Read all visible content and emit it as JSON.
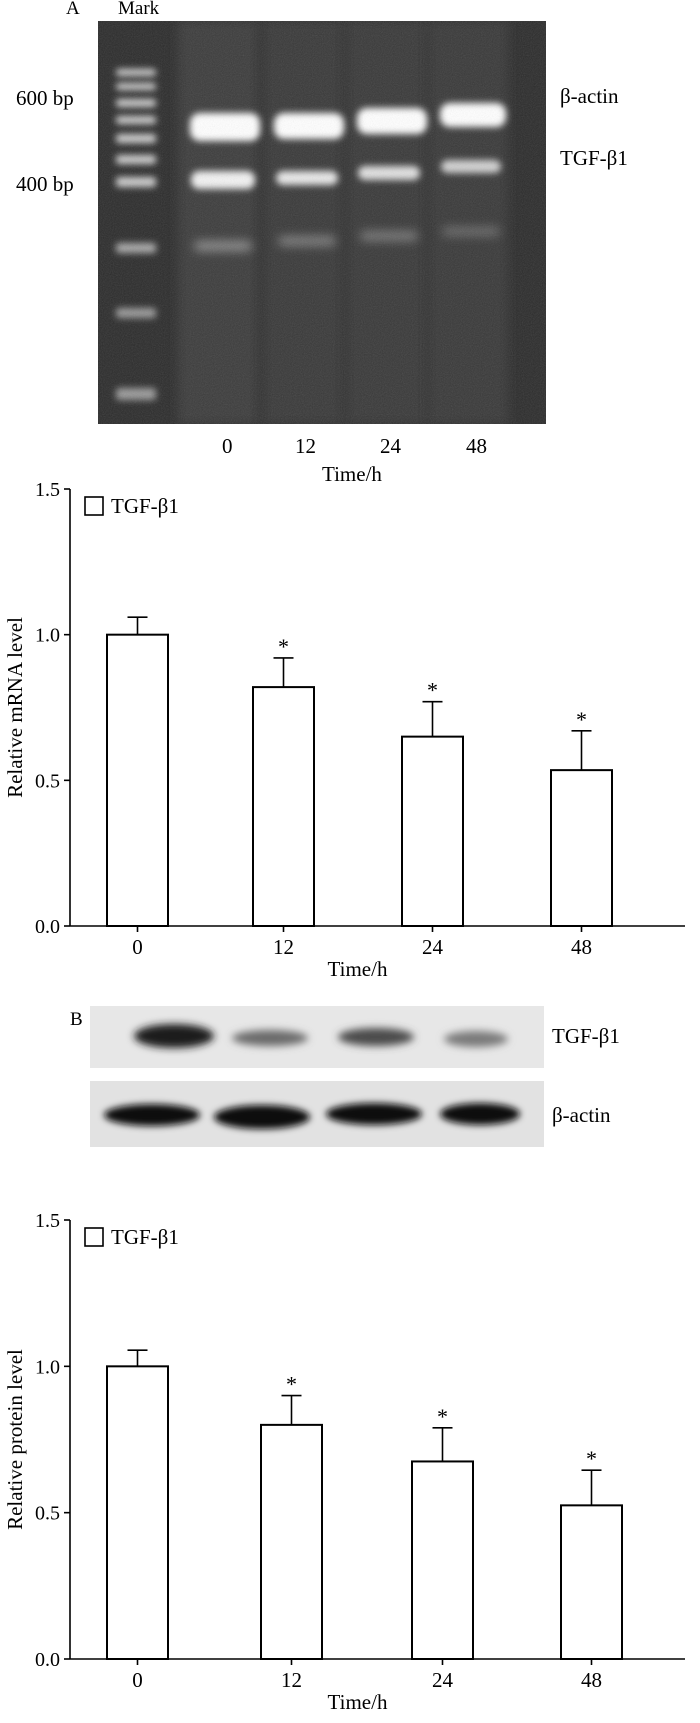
{
  "panel_a": {
    "label": "A",
    "gel": {
      "marker_label": "Mark",
      "size_labels": [
        "600 bp",
        "400 bp"
      ],
      "band_labels": [
        "β-actin",
        "TGF-β1"
      ],
      "lane_labels": [
        "0",
        "12",
        "24",
        "48"
      ],
      "xlabel": "Time/h"
    }
  },
  "panel_b": {
    "label": "B",
    "blot": {
      "band_labels": [
        "TGF-β1",
        "β-actin"
      ]
    }
  },
  "chart_data": [
    {
      "type": "bar",
      "categories": [
        "0",
        "12",
        "24",
        "48"
      ],
      "series": [
        {
          "name": "TGF-β1",
          "values": [
            1.0,
            0.82,
            0.65,
            0.535
          ],
          "errors": [
            0.06,
            0.1,
            0.12,
            0.135
          ]
        }
      ],
      "significance": [
        "",
        "*",
        "*",
        "*"
      ],
      "xlabel": "Time/h",
      "ylabel": "Relative mRNA level",
      "ylim": [
        0,
        1.5
      ],
      "yticks": [
        "0.0",
        "0.5",
        "1.0",
        "1.5"
      ],
      "legend": "top-left"
    },
    {
      "type": "bar",
      "categories": [
        "0",
        "12",
        "24",
        "48"
      ],
      "series": [
        {
          "name": "TGF-β1",
          "values": [
            1.0,
            0.8,
            0.675,
            0.525
          ],
          "errors": [
            0.055,
            0.1,
            0.115,
            0.12
          ]
        }
      ],
      "significance": [
        "",
        "*",
        "*",
        "*"
      ],
      "xlabel": "Time/h",
      "ylabel": "Relative protein level",
      "ylim": [
        0,
        1.5
      ],
      "yticks": [
        "0.0",
        "0.5",
        "1.0",
        "1.5"
      ],
      "legend": "top-left"
    }
  ]
}
